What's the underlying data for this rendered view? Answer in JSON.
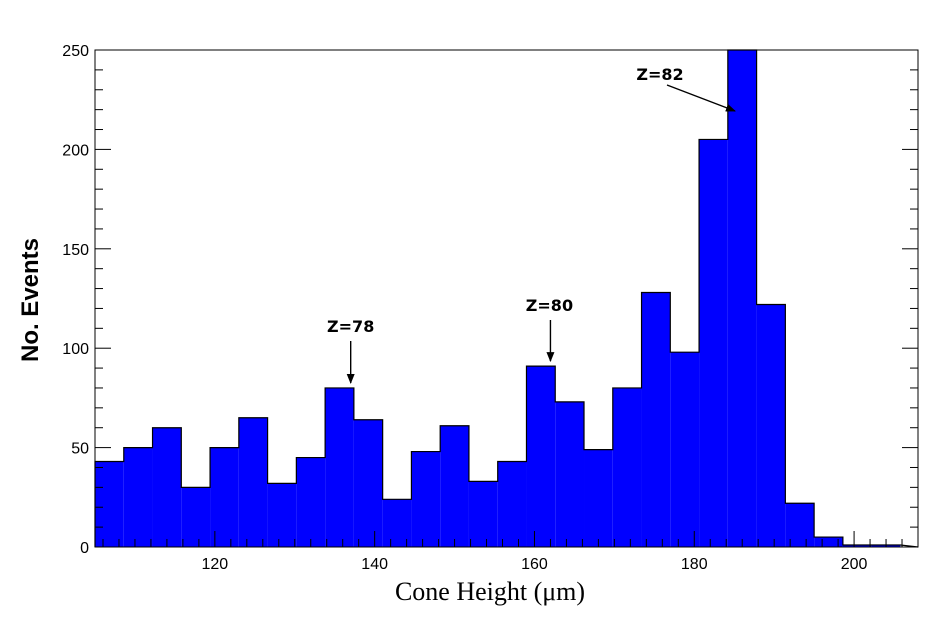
{
  "chart_data": {
    "type": "bar",
    "xlabel": "Cone Height (μm)",
    "ylabel": "No. Events",
    "xlim": [
      105,
      208
    ],
    "ylim": [
      0,
      250
    ],
    "bin_width": 3.6,
    "bin_start": 105,
    "values": [
      43,
      50,
      60,
      30,
      50,
      65,
      32,
      45,
      80,
      64,
      24,
      48,
      61,
      33,
      43,
      91,
      73,
      49,
      80,
      128,
      98,
      205,
      250,
      122,
      22,
      5,
      1,
      1
    ],
    "x_ticks": [
      120,
      140,
      160,
      180,
      200
    ],
    "x_tick_labels": [
      "120",
      "140",
      "160",
      "180",
      "200"
    ],
    "y_ticks": [
      0,
      50,
      100,
      150,
      200,
      250
    ],
    "y_tick_labels": [
      "0",
      "50",
      "100",
      "150",
      "200",
      "250"
    ],
    "annotations": [
      {
        "text": "Z=78",
        "x": 137,
        "y": 80
      },
      {
        "text": "Z=80",
        "x": 162,
        "y": 91
      },
      {
        "text": "Z=82",
        "x": 185,
        "y": 220
      }
    ],
    "bar_color": "#0000ff",
    "grid": false
  }
}
